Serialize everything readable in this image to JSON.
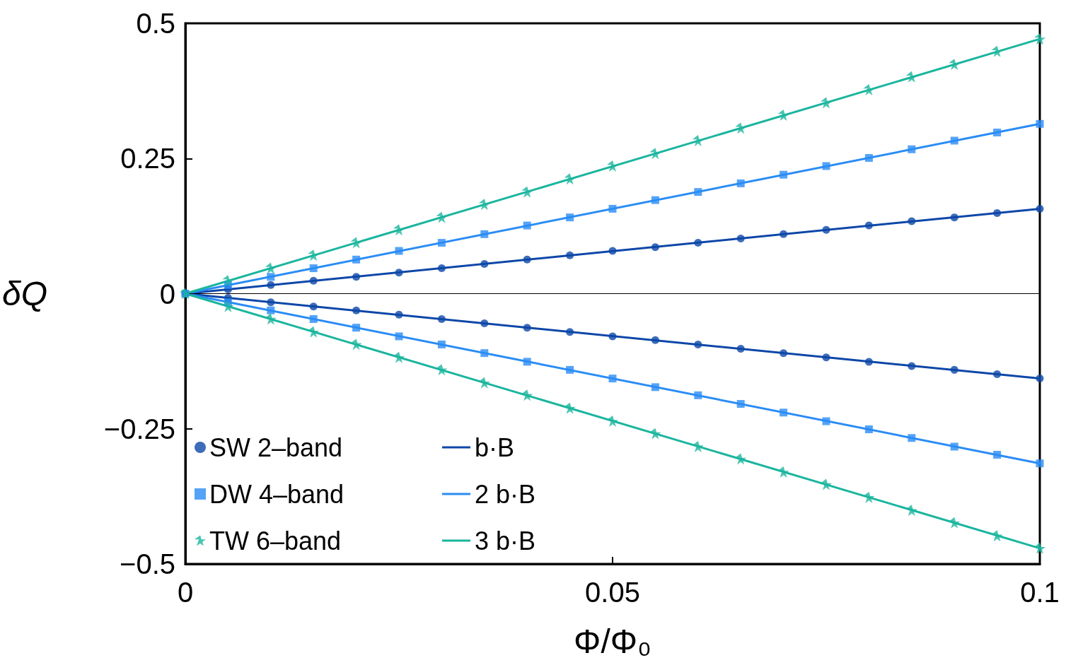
{
  "chart_data": {
    "type": "scatter",
    "xlabel": "Φ/Φ₀",
    "ylabel": "δQ",
    "xlim": [
      0,
      0.1
    ],
    "ylim": [
      -0.5,
      0.5
    ],
    "xticks": [
      0,
      0.05,
      0.1
    ],
    "yticks": [
      {
        "value": -0.5,
        "label": "−0.5"
      },
      {
        "value": -0.25,
        "label": "−0.25"
      },
      0,
      0.25,
      0.5
    ],
    "grid": false,
    "legend": "bottom left",
    "ref_lines": [
      {
        "axis": "y",
        "value": 0,
        "color": "#000000"
      }
    ],
    "series": [
      {
        "name": "SW 2‒band",
        "marker": "circle",
        "color": "#0d47a8",
        "x": [
          0,
          0.005,
          0.01,
          0.015,
          0.02,
          0.025,
          0.03,
          0.035,
          0.04,
          0.045,
          0.05,
          0.055,
          0.06,
          0.065,
          0.07,
          0.075,
          0.08,
          0.085,
          0.09,
          0.095,
          0.1,
          0.005,
          0.01,
          0.015,
          0.02,
          0.025,
          0.03,
          0.035,
          0.04,
          0.045,
          0.05,
          0.055,
          0.06,
          0.065,
          0.07,
          0.075,
          0.08,
          0.085,
          0.09,
          0.095,
          0.1
        ],
        "values": [
          0,
          0.008,
          0.016,
          0.024,
          0.031,
          0.039,
          0.047,
          0.055,
          0.063,
          0.071,
          0.079,
          0.086,
          0.094,
          0.102,
          0.11,
          0.118,
          0.126,
          0.134,
          0.141,
          0.149,
          0.157,
          -0.008,
          -0.016,
          -0.024,
          -0.031,
          -0.039,
          -0.047,
          -0.055,
          -0.063,
          -0.071,
          -0.079,
          -0.086,
          -0.094,
          -0.102,
          -0.11,
          -0.118,
          -0.126,
          -0.134,
          -0.141,
          -0.149,
          -0.157
        ]
      },
      {
        "name": "DW 4‒band",
        "marker": "square",
        "color": "#2a8cf5",
        "x": [
          0,
          0.005,
          0.01,
          0.015,
          0.02,
          0.025,
          0.03,
          0.035,
          0.04,
          0.045,
          0.05,
          0.055,
          0.06,
          0.065,
          0.07,
          0.075,
          0.08,
          0.085,
          0.09,
          0.095,
          0.1,
          0.005,
          0.01,
          0.015,
          0.02,
          0.025,
          0.03,
          0.035,
          0.04,
          0.045,
          0.05,
          0.055,
          0.06,
          0.065,
          0.07,
          0.075,
          0.08,
          0.085,
          0.09,
          0.095,
          0.1
        ],
        "values": [
          0,
          0.016,
          0.031,
          0.047,
          0.063,
          0.079,
          0.094,
          0.11,
          0.126,
          0.141,
          0.157,
          0.173,
          0.188,
          0.204,
          0.22,
          0.236,
          0.251,
          0.267,
          0.283,
          0.298,
          0.314,
          -0.016,
          -0.031,
          -0.047,
          -0.063,
          -0.079,
          -0.094,
          -0.11,
          -0.126,
          -0.141,
          -0.157,
          -0.173,
          -0.188,
          -0.204,
          -0.22,
          -0.236,
          -0.251,
          -0.267,
          -0.283,
          -0.298,
          -0.314
        ]
      },
      {
        "name": "TW 6‒band",
        "marker": "star",
        "color": "#1ab59e",
        "x": [
          0,
          0.005,
          0.01,
          0.015,
          0.02,
          0.025,
          0.03,
          0.035,
          0.04,
          0.045,
          0.05,
          0.055,
          0.06,
          0.065,
          0.07,
          0.075,
          0.08,
          0.085,
          0.09,
          0.095,
          0.1,
          0.005,
          0.01,
          0.015,
          0.02,
          0.025,
          0.03,
          0.035,
          0.04,
          0.045,
          0.05,
          0.055,
          0.06,
          0.065,
          0.07,
          0.075,
          0.08,
          0.085,
          0.09,
          0.095,
          0.1
        ],
        "values": [
          0,
          0.024,
          0.047,
          0.071,
          0.094,
          0.118,
          0.141,
          0.165,
          0.188,
          0.212,
          0.236,
          0.259,
          0.283,
          0.306,
          0.33,
          0.353,
          0.377,
          0.401,
          0.424,
          0.448,
          0.471,
          -0.024,
          -0.047,
          -0.071,
          -0.094,
          -0.118,
          -0.141,
          -0.165,
          -0.188,
          -0.212,
          -0.236,
          -0.259,
          -0.283,
          -0.306,
          -0.33,
          -0.353,
          -0.377,
          -0.401,
          -0.424,
          -0.448,
          -0.471
        ]
      },
      {
        "name": "b·B",
        "type": "line",
        "marker": "none",
        "color": "#0d47a8",
        "x": [
          0,
          0.1
        ],
        "values": [
          0,
          0.157
        ]
      },
      {
        "type": "line",
        "marker": "none",
        "color": "#0d47a8",
        "x": [
          0,
          0.1
        ],
        "values": [
          0,
          -0.157
        ]
      },
      {
        "name": "2 b·B",
        "type": "line",
        "marker": "none",
        "color": "#2a8cf5",
        "x": [
          0,
          0.1
        ],
        "values": [
          0,
          0.314
        ]
      },
      {
        "type": "line",
        "marker": "none",
        "color": "#2a8cf5",
        "x": [
          0,
          0.1
        ],
        "values": [
          0,
          -0.314
        ]
      },
      {
        "name": "3 b·B",
        "type": "line",
        "marker": "none",
        "color": "#1ab59e",
        "x": [
          0,
          0.1
        ],
        "values": [
          0,
          0.471
        ]
      },
      {
        "type": "line",
        "marker": "none",
        "color": "#1ab59e",
        "x": [
          0,
          0.1
        ],
        "values": [
          0,
          -0.471
        ]
      }
    ]
  }
}
